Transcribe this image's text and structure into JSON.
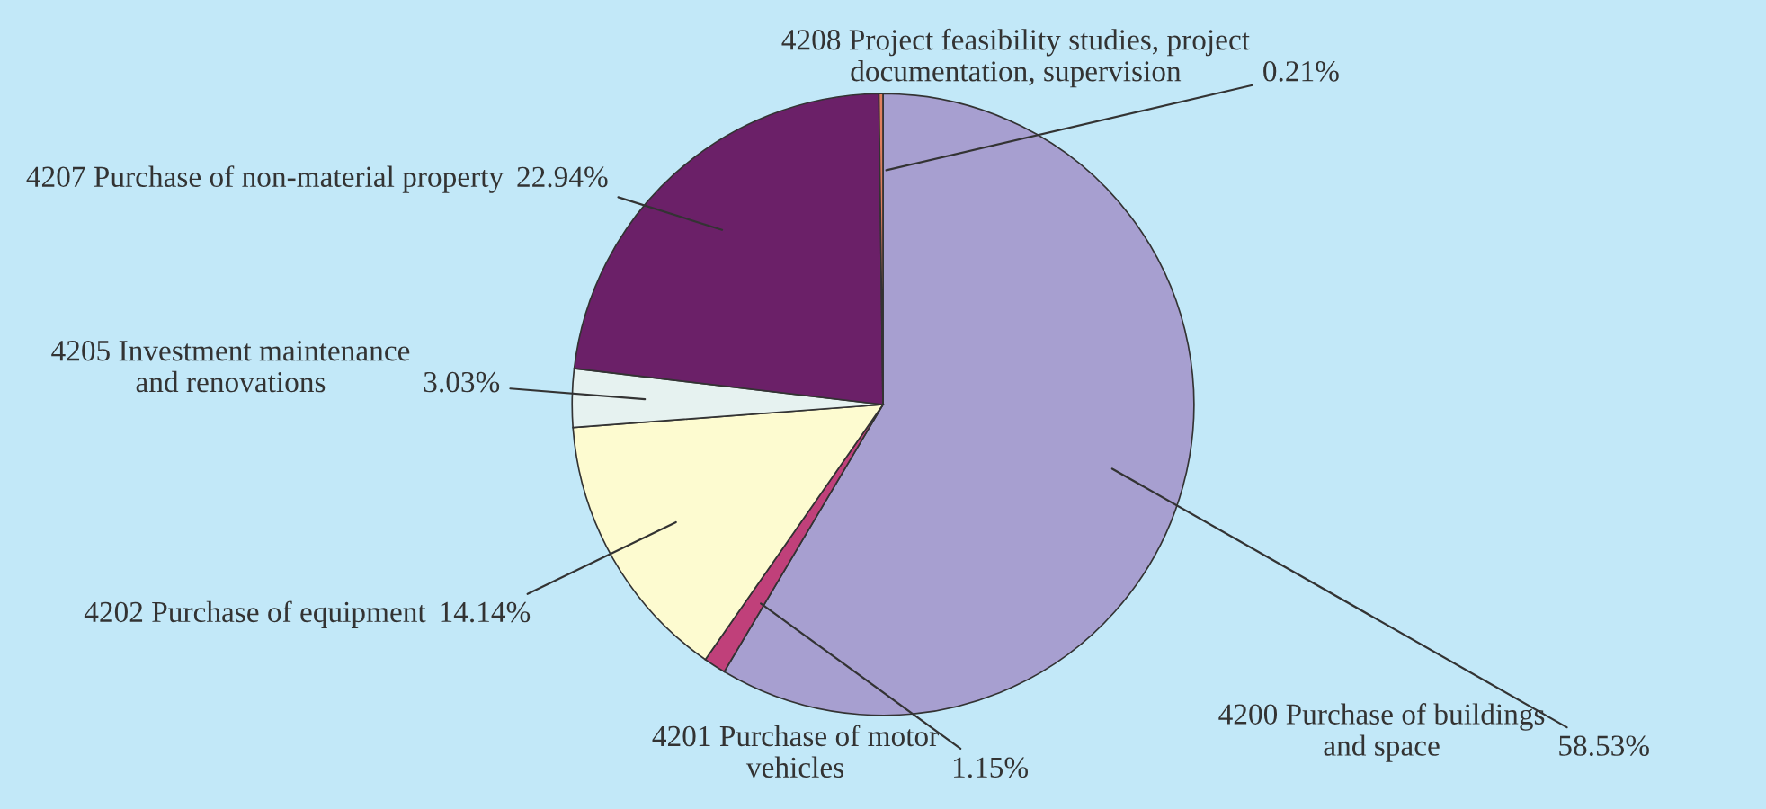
{
  "chart_data": {
    "type": "pie",
    "categories": [
      "4200 Purchase of buildings\nand space",
      "4201 Purchase of motor\nvehicles",
      "4202 Purchase of equipment",
      "4205 Investment maintenance\nand renovations",
      "4207 Purchase of non-material property",
      "4208 Project feasibility studies, project\ndocumentation, supervision"
    ],
    "values": [
      58.53,
      1.15,
      14.14,
      3.03,
      22.94,
      0.21
    ],
    "colors": [
      "#a79fd0",
      "#c0407a",
      "#fdfbd0",
      "#e6f2f0",
      "#6b2068",
      "#e08060"
    ],
    "value_labels": [
      "58.53%",
      "1.15%",
      "14.14%",
      "3.03%",
      "22.94%",
      "0.21%"
    ]
  }
}
